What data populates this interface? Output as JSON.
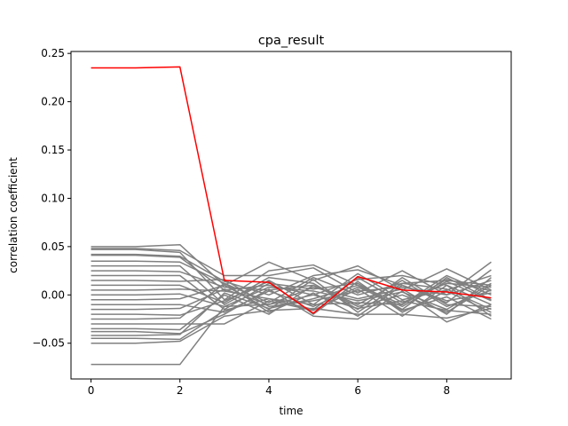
{
  "chart_data": {
    "type": "line",
    "title": "cpa_result",
    "xlabel": "time",
    "ylabel": "correlation coefficient",
    "xlim": [
      -0.45,
      9.45
    ],
    "ylim": [
      -0.087,
      0.252
    ],
    "x_ticks": [
      0,
      2,
      4,
      6,
      8
    ],
    "y_ticks": [
      -0.05,
      0.0,
      0.05,
      0.1,
      0.15,
      0.2,
      0.25
    ],
    "y_tick_labels": [
      "−0.05",
      "0.00",
      "0.05",
      "0.10",
      "0.15",
      "0.20",
      "0.25"
    ],
    "grid": false,
    "legend": "none",
    "highlight_color": "#ff0000",
    "background_color": "#808080",
    "x": [
      0,
      1,
      2,
      3,
      4,
      5,
      6,
      7,
      8,
      9
    ],
    "highlight_series": {
      "values": [
        0.235,
        0.235,
        0.236,
        0.015,
        0.013,
        -0.019,
        0.019,
        0.005,
        0.003,
        -0.003
      ]
    },
    "background_series_note_count": 0,
    "background_series": [
      [
        0.05,
        0.05,
        0.052,
        0.01,
        0.034,
        0.015,
        0.03,
        0.005,
        0.027,
        0.005
      ],
      [
        0.048,
        0.048,
        0.046,
        0.02,
        0.02,
        0.028,
        0.002,
        0.025,
        0.0,
        0.034
      ],
      [
        0.047,
        0.047,
        0.044,
        -0.005,
        0.025,
        0.031,
        0.01,
        -0.01,
        0.02,
        0.0
      ],
      [
        0.042,
        0.042,
        0.04,
        0.014,
        0.0,
        0.02,
        0.026,
        0.01,
        -0.008,
        0.026
      ],
      [
        0.041,
        0.041,
        0.039,
        0.005,
        0.01,
        0.0,
        0.016,
        0.02,
        0.01,
        -0.01
      ],
      [
        0.035,
        0.035,
        0.034,
        0.012,
        -0.008,
        0.018,
        0.0,
        0.012,
        0.015,
        0.01
      ],
      [
        0.03,
        0.03,
        0.03,
        -0.01,
        0.015,
        -0.01,
        0.022,
        -0.005,
        0.005,
        0.02
      ],
      [
        0.025,
        0.025,
        0.024,
        0.008,
        0.005,
        0.01,
        -0.01,
        0.015,
        -0.012,
        0.005
      ],
      [
        0.02,
        0.02,
        0.02,
        -0.015,
        0.012,
        0.006,
        0.012,
        -0.015,
        0.018,
        -0.005
      ],
      [
        0.015,
        0.015,
        0.014,
        0.016,
        -0.012,
        -0.006,
        0.004,
        0.008,
        0.0,
        0.015
      ],
      [
        0.01,
        0.01,
        0.01,
        -0.008,
        0.018,
        0.012,
        -0.015,
        0.018,
        -0.01,
        -0.012
      ],
      [
        0.005,
        0.005,
        0.006,
        0.004,
        -0.004,
        -0.015,
        0.018,
        -0.008,
        0.012,
        0.008
      ],
      [
        0.0,
        0.0,
        0.001,
        -0.012,
        0.008,
        0.004,
        -0.006,
        0.003,
        -0.015,
        0.012
      ],
      [
        -0.005,
        -0.005,
        -0.004,
        0.01,
        -0.015,
        0.016,
        -0.018,
        0.012,
        0.006,
        -0.015
      ],
      [
        -0.01,
        -0.01,
        -0.01,
        -0.018,
        0.004,
        -0.012,
        0.008,
        -0.012,
        0.014,
        -0.006
      ],
      [
        -0.015,
        -0.015,
        -0.014,
        0.006,
        -0.01,
        0.008,
        -0.004,
        0.006,
        -0.02,
        0.018
      ],
      [
        -0.02,
        -0.02,
        -0.021,
        -0.006,
        0.014,
        -0.02,
        0.014,
        -0.018,
        0.004,
        -0.018
      ],
      [
        -0.025,
        -0.025,
        -0.024,
        0.012,
        -0.018,
        0.002,
        -0.022,
        0.01,
        -0.006,
        0.002
      ],
      [
        -0.03,
        -0.03,
        -0.03,
        -0.03,
        -0.006,
        -0.016,
        0.006,
        -0.022,
        0.01,
        -0.022
      ],
      [
        -0.035,
        -0.035,
        -0.036,
        0.0,
        -0.02,
        0.01,
        -0.012,
        0.0,
        -0.018,
        0.01
      ],
      [
        -0.038,
        -0.038,
        -0.04,
        -0.02,
        0.006,
        -0.022,
        -0.025,
        0.004,
        -0.028,
        -0.01
      ],
      [
        -0.042,
        -0.042,
        -0.041,
        0.002,
        -0.014,
        -0.004,
        0.01,
        -0.016,
        -0.002,
        -0.025
      ],
      [
        -0.045,
        -0.045,
        -0.046,
        -0.016,
        -0.004,
        -0.01,
        -0.008,
        -0.01,
        0.016,
        0.004
      ],
      [
        -0.05,
        -0.05,
        -0.048,
        -0.022,
        -0.016,
        -0.014,
        -0.02,
        -0.02,
        -0.024,
        -0.014
      ],
      [
        -0.072,
        -0.072,
        -0.072,
        -0.012,
        -0.01,
        0.0,
        -0.014,
        -0.006,
        -0.016,
        -0.02
      ]
    ]
  }
}
